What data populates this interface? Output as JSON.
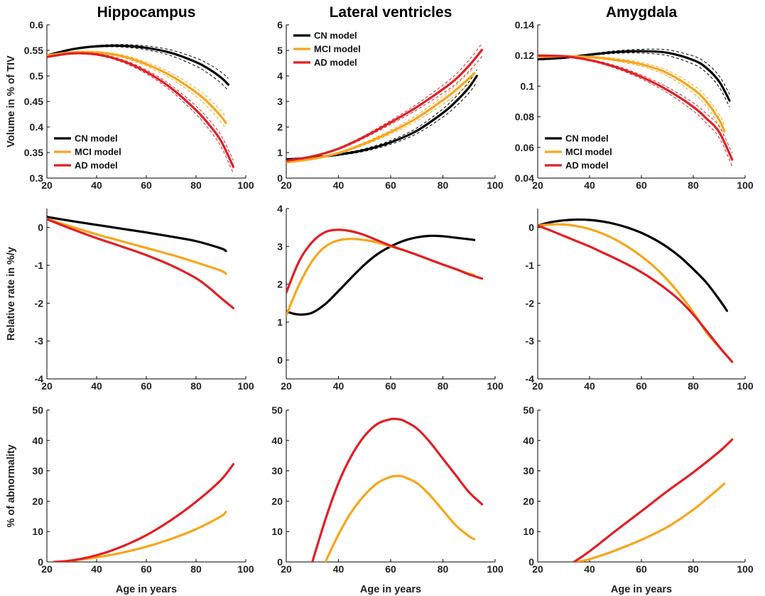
{
  "colors": {
    "CN": "#000000",
    "MCI": "#F9A51A",
    "AD": "#E31E24",
    "axis": "#000000"
  },
  "chart_data": [
    {
      "type": "line",
      "title": "Hippocampus",
      "xlabel": "",
      "ylabel": "Volume in % of TIV",
      "xlim": [
        20,
        100
      ],
      "ylim": [
        0.3,
        0.6
      ],
      "xticks": [
        20,
        40,
        60,
        80,
        100
      ],
      "yticks": [
        0.3,
        0.35,
        0.4,
        0.45,
        0.5,
        0.55,
        0.6
      ],
      "ytick_labels": [
        "0.3",
        "0.35",
        "0.4",
        "0.45",
        "0.5",
        "0.55",
        "0.6"
      ],
      "legend": "lower-left",
      "confidence_bands": true,
      "series": [
        {
          "name": "CN model",
          "color": "#000000",
          "x": [
            20,
            30,
            40,
            50,
            60,
            70,
            80,
            85,
            90,
            93
          ],
          "y": [
            0.54,
            0.552,
            0.558,
            0.559,
            0.555,
            0.545,
            0.527,
            0.514,
            0.497,
            0.483
          ]
        },
        {
          "name": "MCI model",
          "color": "#F9A51A",
          "x": [
            20,
            30,
            40,
            50,
            60,
            70,
            80,
            85,
            90,
            92
          ],
          "y": [
            0.54,
            0.546,
            0.546,
            0.539,
            0.523,
            0.5,
            0.468,
            0.447,
            0.421,
            0.408
          ]
        },
        {
          "name": "AD model",
          "color": "#E31E24",
          "x": [
            20,
            30,
            40,
            50,
            60,
            70,
            80,
            85,
            90,
            95
          ],
          "y": [
            0.537,
            0.544,
            0.542,
            0.53,
            0.508,
            0.476,
            0.433,
            0.406,
            0.373,
            0.322
          ]
        }
      ]
    },
    {
      "type": "line",
      "title": "Lateral ventricles",
      "xlabel": "",
      "ylabel": "",
      "xlim": [
        20,
        100
      ],
      "ylim": [
        0,
        6
      ],
      "xticks": [
        20,
        40,
        60,
        80,
        100
      ],
      "yticks": [
        0,
        1,
        2,
        3,
        4,
        5,
        6
      ],
      "ytick_labels": [
        "0",
        "1",
        "2",
        "3",
        "4",
        "5",
        "6"
      ],
      "legend": "top-left",
      "confidence_bands": true,
      "series": [
        {
          "name": "CN model",
          "color": "#000000",
          "x": [
            20,
            30,
            40,
            50,
            60,
            70,
            80,
            85,
            90,
            93
          ],
          "y": [
            0.73,
            0.8,
            0.92,
            1.1,
            1.4,
            1.85,
            2.55,
            3.0,
            3.55,
            4.0
          ]
        },
        {
          "name": "MCI model",
          "color": "#F9A51A",
          "x": [
            20,
            30,
            40,
            50,
            60,
            70,
            80,
            85,
            90,
            92
          ],
          "y": [
            0.62,
            0.75,
            0.98,
            1.35,
            1.8,
            2.35,
            3.05,
            3.45,
            3.9,
            4.1
          ]
        },
        {
          "name": "AD model",
          "color": "#E31E24",
          "x": [
            20,
            30,
            40,
            50,
            60,
            70,
            80,
            85,
            90,
            95
          ],
          "y": [
            0.68,
            0.85,
            1.15,
            1.62,
            2.18,
            2.78,
            3.48,
            3.88,
            4.4,
            5.02
          ]
        }
      ]
    },
    {
      "type": "line",
      "title": "Amygdala",
      "xlabel": "",
      "ylabel": "",
      "xlim": [
        20,
        100
      ],
      "ylim": [
        0.04,
        0.14
      ],
      "xticks": [
        20,
        40,
        60,
        80,
        100
      ],
      "yticks": [
        0.04,
        0.06,
        0.08,
        0.1,
        0.12,
        0.14
      ],
      "ytick_labels": [
        "0.04",
        "0.06",
        "0.08",
        "0.1",
        "0.12",
        "0.14"
      ],
      "legend": "lower-left",
      "confidence_bands": true,
      "series": [
        {
          "name": "CN model",
          "color": "#000000",
          "x": [
            20,
            30,
            40,
            50,
            60,
            70,
            80,
            85,
            90,
            94
          ],
          "y": [
            0.1175,
            0.1185,
            0.1205,
            0.1222,
            0.1228,
            0.1218,
            0.117,
            0.112,
            0.103,
            0.0905
          ]
        },
        {
          "name": "MCI model",
          "color": "#F9A51A",
          "x": [
            20,
            30,
            40,
            50,
            60,
            70,
            80,
            85,
            90,
            92
          ],
          "y": [
            0.119,
            0.1195,
            0.119,
            0.1172,
            0.1142,
            0.1085,
            0.098,
            0.09,
            0.078,
            0.0705
          ]
        },
        {
          "name": "AD model",
          "color": "#E31E24",
          "x": [
            20,
            30,
            40,
            50,
            60,
            70,
            80,
            85,
            90,
            95
          ],
          "y": [
            0.12,
            0.1195,
            0.117,
            0.1125,
            0.106,
            0.0975,
            0.0865,
            0.079,
            0.07,
            0.052
          ]
        }
      ]
    },
    {
      "type": "line",
      "xlabel": "",
      "ylabel": "Relative rate in %/y",
      "xlim": [
        20,
        100
      ],
      "ylim": [
        -4,
        0.5
      ],
      "xticks": [
        20,
        40,
        60,
        80,
        100
      ],
      "yticks": [
        -4,
        -3,
        -2,
        -1,
        0
      ],
      "ytick_labels": [
        "-4",
        "-3",
        "-2",
        "-1",
        "0"
      ],
      "series": [
        {
          "color": "#000000",
          "x": [
            20,
            30,
            40,
            50,
            60,
            70,
            80,
            90,
            92
          ],
          "y": [
            0.28,
            0.17,
            0.07,
            -0.03,
            -0.13,
            -0.24,
            -0.36,
            -0.55,
            -0.62
          ]
        },
        {
          "color": "#F9A51A",
          "x": [
            20,
            30,
            40,
            50,
            60,
            70,
            80,
            90,
            92
          ],
          "y": [
            0.23,
            0.02,
            -0.18,
            -0.36,
            -0.54,
            -0.72,
            -0.92,
            -1.14,
            -1.22
          ]
        },
        {
          "color": "#E31E24",
          "x": [
            20,
            30,
            40,
            50,
            60,
            70,
            80,
            85,
            90,
            95
          ],
          "y": [
            0.22,
            -0.04,
            -0.28,
            -0.5,
            -0.73,
            -1.0,
            -1.34,
            -1.58,
            -1.86,
            -2.13
          ]
        }
      ]
    },
    {
      "type": "line",
      "xlabel": "",
      "ylabel": "",
      "xlim": [
        20,
        100
      ],
      "ylim": [
        -0.5,
        4
      ],
      "xticks": [
        20,
        40,
        60,
        80,
        100
      ],
      "yticks": [
        0,
        1,
        2,
        3,
        4
      ],
      "ytick_labels": [
        "0",
        "1",
        "2",
        "3",
        "4"
      ],
      "series": [
        {
          "color": "#000000",
          "x": [
            20,
            23,
            26,
            30,
            35,
            40,
            45,
            50,
            55,
            60,
            65,
            70,
            75,
            80,
            85,
            90,
            92
          ],
          "y": [
            1.28,
            1.22,
            1.2,
            1.25,
            1.48,
            1.82,
            2.18,
            2.52,
            2.8,
            3.0,
            3.15,
            3.24,
            3.28,
            3.27,
            3.23,
            3.19,
            3.17
          ]
        },
        {
          "color": "#F9A51A",
          "x": [
            20,
            25,
            30,
            35,
            40,
            45,
            50,
            55,
            60,
            65,
            70,
            75,
            80,
            85,
            90,
            92
          ],
          "y": [
            1.18,
            2.0,
            2.62,
            3.0,
            3.16,
            3.2,
            3.17,
            3.1,
            3.0,
            2.9,
            2.78,
            2.65,
            2.52,
            2.4,
            2.28,
            2.24
          ]
        },
        {
          "color": "#E31E24",
          "x": [
            20,
            25,
            30,
            35,
            40,
            45,
            50,
            55,
            60,
            65,
            70,
            75,
            80,
            85,
            90,
            95
          ],
          "y": [
            1.78,
            2.62,
            3.12,
            3.38,
            3.44,
            3.4,
            3.3,
            3.16,
            3.02,
            2.9,
            2.78,
            2.65,
            2.52,
            2.4,
            2.26,
            2.15
          ]
        }
      ]
    },
    {
      "type": "line",
      "xlabel": "",
      "ylabel": "",
      "xlim": [
        20,
        100
      ],
      "ylim": [
        -4,
        0.5
      ],
      "xticks": [
        20,
        40,
        60,
        80,
        100
      ],
      "yticks": [
        -4,
        -3,
        -2,
        -1,
        0
      ],
      "ytick_labels": [
        "-4",
        "-3",
        "-2",
        "-1",
        "0"
      ],
      "series": [
        {
          "color": "#000000",
          "x": [
            20,
            25,
            30,
            35,
            40,
            45,
            50,
            55,
            60,
            65,
            70,
            75,
            80,
            85,
            90,
            93
          ],
          "y": [
            0.05,
            0.14,
            0.19,
            0.21,
            0.2,
            0.16,
            0.09,
            -0.01,
            -0.14,
            -0.31,
            -0.52,
            -0.78,
            -1.1,
            -1.45,
            -1.9,
            -2.2
          ]
        },
        {
          "color": "#F9A51A",
          "x": [
            20,
            25,
            30,
            35,
            40,
            45,
            50,
            55,
            60,
            65,
            70,
            75,
            80,
            85,
            90,
            92
          ],
          "y": [
            0.05,
            0.08,
            0.08,
            0.04,
            -0.04,
            -0.16,
            -0.32,
            -0.52,
            -0.76,
            -1.04,
            -1.38,
            -1.78,
            -2.24,
            -2.76,
            -3.16,
            -3.32
          ]
        },
        {
          "color": "#E31E24",
          "x": [
            20,
            25,
            30,
            35,
            40,
            45,
            50,
            55,
            60,
            65,
            70,
            75,
            80,
            85,
            90,
            95
          ],
          "y": [
            0.05,
            -0.08,
            -0.22,
            -0.36,
            -0.5,
            -0.66,
            -0.82,
            -0.99,
            -1.18,
            -1.4,
            -1.65,
            -1.94,
            -2.3,
            -2.72,
            -3.15,
            -3.55
          ]
        }
      ]
    },
    {
      "type": "line",
      "xlabel": "Age in years",
      "ylabel": "% of abnormality",
      "xlim": [
        20,
        100
      ],
      "ylim": [
        0,
        50
      ],
      "xticks": [
        20,
        40,
        60,
        80,
        100
      ],
      "yticks": [
        0,
        10,
        20,
        30,
        40,
        50
      ],
      "ytick_labels": [
        "0",
        "10",
        "20",
        "30",
        "40",
        "50"
      ],
      "series": [
        {
          "color": "#F9A51A",
          "x": [
            23,
            30,
            40,
            50,
            60,
            70,
            80,
            90,
            92
          ],
          "y": [
            0,
            0.4,
            1.5,
            3.0,
            5.0,
            7.6,
            10.8,
            15.0,
            16.5
          ]
        },
        {
          "color": "#E31E24",
          "x": [
            23,
            30,
            40,
            50,
            60,
            70,
            80,
            90,
            95
          ],
          "y": [
            0,
            0.5,
            2.2,
            5.0,
            8.8,
            13.8,
            19.8,
            27.0,
            32.2
          ]
        }
      ]
    },
    {
      "type": "line",
      "xlabel": "Age in years",
      "ylabel": "",
      "xlim": [
        20,
        100
      ],
      "ylim": [
        0,
        50
      ],
      "xticks": [
        20,
        40,
        60,
        80,
        100
      ],
      "yticks": [
        0,
        10,
        20,
        30,
        40,
        50
      ],
      "ytick_labels": [
        "0",
        "10",
        "20",
        "30",
        "40",
        "50"
      ],
      "series": [
        {
          "color": "#F9A51A",
          "x": [
            35,
            40,
            45,
            50,
            55,
            60,
            63,
            65,
            70,
            75,
            80,
            85,
            90,
            92
          ],
          "y": [
            0,
            9,
            16.5,
            22,
            26,
            28,
            28.3,
            28,
            26,
            22,
            17,
            12,
            8.5,
            7.5
          ]
        },
        {
          "color": "#E31E24",
          "x": [
            30,
            35,
            40,
            45,
            50,
            55,
            60,
            63,
            65,
            70,
            75,
            80,
            85,
            90,
            95
          ],
          "y": [
            0,
            14,
            26,
            35,
            41.5,
            45.5,
            47,
            47,
            46.5,
            44,
            39.5,
            34,
            28.5,
            23,
            19
          ]
        }
      ]
    },
    {
      "type": "line",
      "xlabel": "Age in years",
      "ylabel": "",
      "xlim": [
        20,
        100
      ],
      "ylim": [
        0,
        50
      ],
      "xticks": [
        20,
        40,
        60,
        80,
        100
      ],
      "yticks": [
        0,
        10,
        20,
        30,
        40,
        50
      ],
      "ytick_labels": [
        "0",
        "10",
        "20",
        "30",
        "40",
        "50"
      ],
      "series": [
        {
          "color": "#F9A51A",
          "x": [
            35,
            40,
            50,
            60,
            70,
            80,
            88,
            92
          ],
          "y": [
            0,
            0.9,
            3.8,
            7.3,
            11.5,
            17.2,
            22.8,
            25.8
          ]
        },
        {
          "color": "#E31E24",
          "x": [
            34,
            40,
            50,
            60,
            70,
            80,
            90,
            95
          ],
          "y": [
            0,
            3.5,
            10.2,
            16.7,
            23.3,
            29.5,
            36.3,
            40.3
          ]
        }
      ]
    }
  ]
}
